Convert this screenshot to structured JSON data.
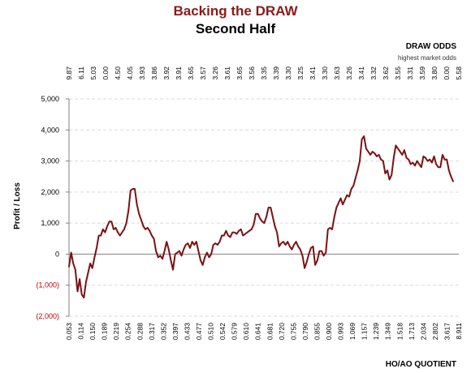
{
  "chart_data": {
    "type": "line",
    "title": "Backing the DRAW",
    "subtitle": "Second Half",
    "xlabel": "HO/AO QUOTIENT",
    "ylabel": "Profit / Loss",
    "top_axis_title": "DRAW ODDS",
    "top_axis_subtitle": "highest market odds",
    "ylim": [
      -2000,
      5000
    ],
    "y_ticks": [
      5000,
      4000,
      3000,
      2000,
      1000,
      0,
      -1000,
      -2000
    ],
    "y_tick_labels": [
      "5,000",
      "4,000",
      "3,000",
      "2,000",
      "1,000",
      "0",
      "(1,000)",
      "(2,000)"
    ],
    "x_tick_labels": [
      "0.053",
      "0.114",
      "0.150",
      "0.189",
      "0.219",
      "0.254",
      "0.288",
      "0.317",
      "0.352",
      "0.397",
      "0.433",
      "0.477",
      "0.510",
      "0.542",
      "0.579",
      "0.610",
      "0.641",
      "0.681",
      "0.720",
      "0.755",
      "0.790",
      "0.855",
      "0.900",
      "0.993",
      "1.069",
      "1.157",
      "1.239",
      "1.349",
      "1.518",
      "1.713",
      "2.034",
      "2.802",
      "3.617",
      "8.911"
    ],
    "top_tick_labels": [
      "9.87",
      "6.11",
      "5.03",
      "0.00",
      "4.50",
      "4.05",
      "3.93",
      "3.86",
      "3.92",
      "3.91",
      "3.65",
      "3.57",
      "3.26",
      "3.61",
      "3.65",
      "3.56",
      "3.35",
      "3.39",
      "3.30",
      "3.25",
      "3.41",
      "3.30",
      "3.63",
      "3.26",
      "3.41",
      "3.32",
      "3.62",
      "3.55",
      "3.31",
      "3.59",
      "3.80",
      "0.00",
      "5.58"
    ],
    "grid": "horizontal dashed",
    "legend": "none",
    "colors": {
      "line": "#7B1113",
      "negative_ticks": "#C00000",
      "title": "#8B1A1A",
      "grid": "#d9d9d9"
    },
    "series": [
      {
        "values": [
          -400,
          50,
          -300,
          -500,
          -1200,
          -800,
          -1300,
          -1400,
          -900,
          -600,
          -300,
          -450,
          -100,
          200,
          600,
          600,
          800,
          700,
          900,
          1050,
          1050,
          800,
          850,
          700,
          600,
          700,
          800,
          1000,
          1400,
          2050,
          2100,
          2100,
          1600,
          1300,
          1100,
          900,
          800,
          850,
          750,
          600,
          500,
          100,
          -100,
          -50,
          -150,
          100,
          400,
          150,
          -200,
          -500,
          0,
          50,
          100,
          -50,
          150,
          300,
          350,
          200,
          400,
          300,
          400,
          100,
          -200,
          -350,
          -100,
          50,
          -100,
          0,
          300,
          350,
          300,
          400,
          600,
          600,
          750,
          600,
          550,
          700,
          700,
          650,
          750,
          800,
          600,
          650,
          700,
          750,
          800,
          950,
          1300,
          1300,
          1150,
          1050,
          1000,
          1200,
          1500,
          1500,
          1200,
          900,
          700,
          250,
          350,
          400,
          300,
          400,
          250,
          150,
          300,
          400,
          250,
          150,
          -50,
          -450,
          -250,
          0,
          200,
          250,
          -350,
          -200,
          100,
          100,
          -50,
          50,
          800,
          850,
          800,
          1200,
          1500,
          1650,
          1800,
          1600,
          1750,
          1900,
          1850,
          2100,
          2200,
          2450,
          2700,
          3000,
          3700,
          3800,
          3400,
          3300,
          3200,
          3300,
          3250,
          3150,
          3200,
          3050,
          3000,
          2600,
          2700,
          2400,
          2550,
          3100,
          3500,
          3400,
          3300,
          3200,
          3350,
          3100,
          3050,
          2900,
          2950,
          2850,
          3000,
          2900,
          2800,
          3150,
          3100,
          3000,
          3050,
          2950,
          3150,
          2900,
          2800,
          2800,
          3200,
          3050,
          3050,
          2700,
          2500,
          2350
        ]
      }
    ]
  }
}
